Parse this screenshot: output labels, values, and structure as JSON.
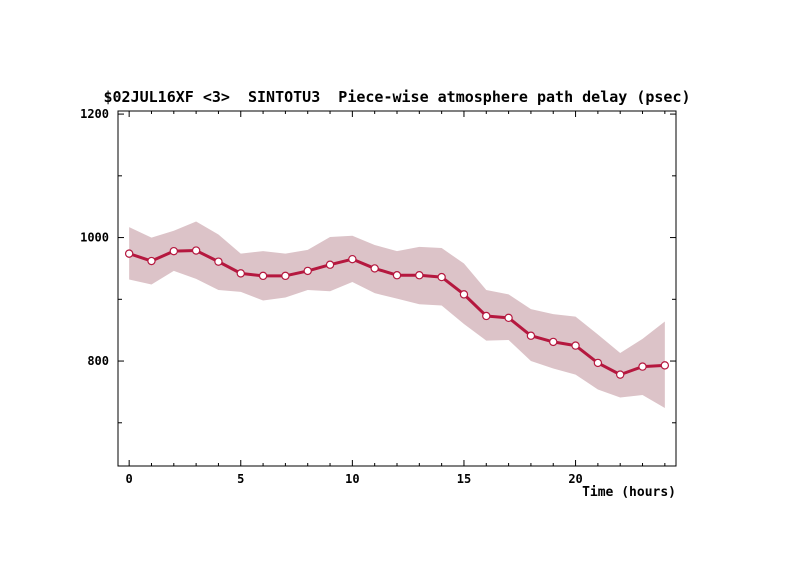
{
  "chart_data": {
    "type": "line",
    "title": "$02JUL16XF <3>  SINTOTU3  Piece-wise atmosphere path delay (psec)",
    "xlabel": "Time (hours)",
    "ylabel": "",
    "xlim": [
      -0.5,
      24.5
    ],
    "ylim": [
      630,
      1205
    ],
    "x_ticks": [
      0,
      5,
      10,
      15,
      20
    ],
    "y_ticks": [
      800,
      1000,
      1200
    ],
    "grid": false,
    "colors": {
      "line": "#b5183f",
      "band": "#dcc3c8",
      "marker_fill": "#ffffff"
    },
    "series": [
      {
        "x": [
          0,
          1,
          2,
          3,
          4,
          5,
          6,
          7,
          8,
          9,
          10,
          11,
          12,
          13,
          14,
          15,
          16,
          17,
          18,
          19,
          20,
          21,
          22,
          23,
          24
        ],
        "values": [
          974,
          962,
          978,
          979,
          961,
          942,
          938,
          938,
          946,
          956,
          965,
          950,
          939,
          939,
          936,
          908,
          873,
          870,
          841,
          831,
          825,
          797,
          778,
          791,
          793
        ],
        "upper": [
          1017,
          1000,
          1011,
          1026,
          1005,
          974,
          978,
          974,
          980,
          1001,
          1003,
          988,
          978,
          985,
          983,
          958,
          915,
          908,
          884,
          876,
          872,
          843,
          813,
          836,
          864
        ],
        "lower": [
          932,
          924,
          946,
          933,
          915,
          912,
          898,
          903,
          915,
          913,
          928,
          910,
          901,
          892,
          890,
          860,
          833,
          834,
          800,
          788,
          778,
          754,
          741,
          745,
          724
        ]
      }
    ]
  }
}
